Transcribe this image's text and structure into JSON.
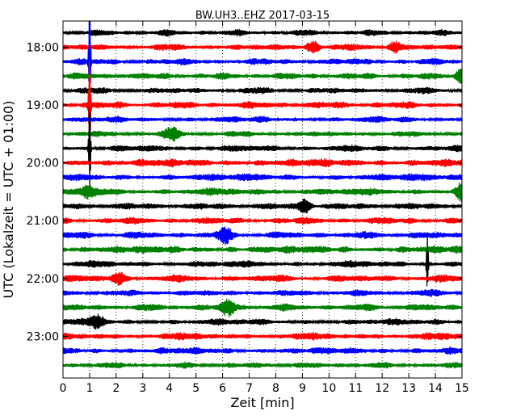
{
  "chart_data": {
    "type": "line",
    "title": "BW.UH3..EHZ 2017-03-15",
    "xlabel": "Zeit  [min]",
    "ylabel": "UTC (Lokalzeit = UTC + 01:00)",
    "xlim": [
      0,
      15
    ],
    "x_ticks": [
      0,
      1,
      2,
      3,
      4,
      5,
      6,
      7,
      8,
      9,
      10,
      11,
      12,
      13,
      14,
      15
    ],
    "grid": "vertical dotted",
    "row_interval_min": 15,
    "row_start_utc": "17:45",
    "rows": 24,
    "color_cycle": [
      "#000000",
      "#ff0000",
      "#0000ff",
      "#008000"
    ],
    "y_ticks": [
      {
        "label": "18:00",
        "row": 1
      },
      {
        "label": "19:00",
        "row": 5
      },
      {
        "label": "20:00",
        "row": 9
      },
      {
        "label": "21:00",
        "row": 13
      },
      {
        "label": "22:00",
        "row": 17
      },
      {
        "label": "23:00",
        "row": 21
      }
    ],
    "events": [
      {
        "row": 1,
        "x": 9.4,
        "amp": 1.3
      },
      {
        "row": 1,
        "x": 12.5,
        "amp": 1.2
      },
      {
        "row": 2,
        "x": 1.0,
        "amp": 3.0,
        "spike": true
      },
      {
        "row": 3,
        "x": 15.0,
        "amp": 1.4
      },
      {
        "row": 5,
        "x": 1.0,
        "amp": 2.5,
        "spike": true
      },
      {
        "row": 7,
        "x": 4.1,
        "amp": 1.1
      },
      {
        "row": 8,
        "x": 1.0,
        "amp": 2.5,
        "spike": true
      },
      {
        "row": 11,
        "x": 0.9,
        "amp": 1.1
      },
      {
        "row": 11,
        "x": 15.0,
        "amp": 1.6
      },
      {
        "row": 12,
        "x": 9.1,
        "amp": 1.3
      },
      {
        "row": 14,
        "x": 6.1,
        "amp": 1.2
      },
      {
        "row": 16,
        "x": 13.7,
        "amp": 1.5,
        "spike": true
      },
      {
        "row": 17,
        "x": 2.1,
        "amp": 1.0
      },
      {
        "row": 19,
        "x": 6.2,
        "amp": 1.5
      },
      {
        "row": 20,
        "x": 1.3,
        "amp": 1.4
      }
    ]
  }
}
